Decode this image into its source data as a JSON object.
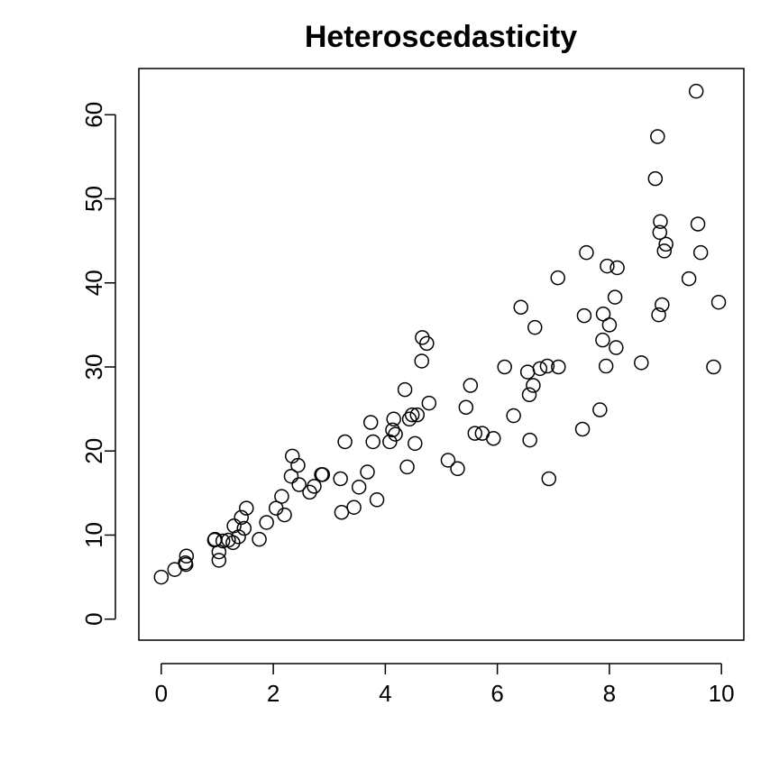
{
  "chart_data": {
    "type": "scatter",
    "title": "Heteroscedasticity",
    "xlabel": "",
    "ylabel": "",
    "xlim": [
      -0.4,
      10.4
    ],
    "ylim": [
      -2.5,
      65.5
    ],
    "xticks": [
      0,
      2,
      4,
      6,
      8,
      10
    ],
    "yticks": [
      0,
      10,
      20,
      30,
      40,
      50,
      60
    ],
    "grid": false,
    "points": [
      [
        0.0,
        5.0
      ],
      [
        0.24,
        5.9
      ],
      [
        0.43,
        6.7
      ],
      [
        0.44,
        6.5
      ],
      [
        0.45,
        7.5
      ],
      [
        0.95,
        9.4
      ],
      [
        0.96,
        9.5
      ],
      [
        1.03,
        8.0
      ],
      [
        1.03,
        7.0
      ],
      [
        1.1,
        9.3
      ],
      [
        1.2,
        9.4
      ],
      [
        1.28,
        9.1
      ],
      [
        1.3,
        11.1
      ],
      [
        1.38,
        9.8
      ],
      [
        1.43,
        12.1
      ],
      [
        1.48,
        10.8
      ],
      [
        1.52,
        13.2
      ],
      [
        1.75,
        9.5
      ],
      [
        1.88,
        11.5
      ],
      [
        2.05,
        13.2
      ],
      [
        2.15,
        14.6
      ],
      [
        2.2,
        12.4
      ],
      [
        2.32,
        17.0
      ],
      [
        2.34,
        19.4
      ],
      [
        2.44,
        18.3
      ],
      [
        2.46,
        16.0
      ],
      [
        2.65,
        15.1
      ],
      [
        2.73,
        15.8
      ],
      [
        2.86,
        17.2
      ],
      [
        2.88,
        17.2
      ],
      [
        3.2,
        16.7
      ],
      [
        3.22,
        12.7
      ],
      [
        3.28,
        21.1
      ],
      [
        3.44,
        13.3
      ],
      [
        3.53,
        15.7
      ],
      [
        3.68,
        17.5
      ],
      [
        3.74,
        23.4
      ],
      [
        3.78,
        21.1
      ],
      [
        3.85,
        14.2
      ],
      [
        4.08,
        21.1
      ],
      [
        4.13,
        22.5
      ],
      [
        4.15,
        23.8
      ],
      [
        4.18,
        22.0
      ],
      [
        4.35,
        27.3
      ],
      [
        4.39,
        18.1
      ],
      [
        4.43,
        23.8
      ],
      [
        4.48,
        24.3
      ],
      [
        4.53,
        20.9
      ],
      [
        4.57,
        24.3
      ],
      [
        4.65,
        30.7
      ],
      [
        4.66,
        33.5
      ],
      [
        4.74,
        32.8
      ],
      [
        4.78,
        25.7
      ],
      [
        5.12,
        18.9
      ],
      [
        5.29,
        17.9
      ],
      [
        5.44,
        25.2
      ],
      [
        5.52,
        27.8
      ],
      [
        5.6,
        22.1
      ],
      [
        5.73,
        22.1
      ],
      [
        5.93,
        21.5
      ],
      [
        6.13,
        30.0
      ],
      [
        6.29,
        24.2
      ],
      [
        6.42,
        37.1
      ],
      [
        6.54,
        29.4
      ],
      [
        6.57,
        26.7
      ],
      [
        6.58,
        21.3
      ],
      [
        6.64,
        27.8
      ],
      [
        6.67,
        34.7
      ],
      [
        6.76,
        29.8
      ],
      [
        6.89,
        30.1
      ],
      [
        6.92,
        16.7
      ],
      [
        7.08,
        40.6
      ],
      [
        7.09,
        30.0
      ],
      [
        7.52,
        22.6
      ],
      [
        7.55,
        36.1
      ],
      [
        7.59,
        43.6
      ],
      [
        7.83,
        24.9
      ],
      [
        7.88,
        33.2
      ],
      [
        7.89,
        36.3
      ],
      [
        7.94,
        30.1
      ],
      [
        7.96,
        42.0
      ],
      [
        8.0,
        35.0
      ],
      [
        8.1,
        38.3
      ],
      [
        8.12,
        32.3
      ],
      [
        8.14,
        41.8
      ],
      [
        8.57,
        30.5
      ],
      [
        8.82,
        52.4
      ],
      [
        8.86,
        57.4
      ],
      [
        8.88,
        36.2
      ],
      [
        8.9,
        46.0
      ],
      [
        8.91,
        47.3
      ],
      [
        8.94,
        37.4
      ],
      [
        8.98,
        43.8
      ],
      [
        9.01,
        44.6
      ],
      [
        9.42,
        40.5
      ],
      [
        9.55,
        62.8
      ],
      [
        9.58,
        47.0
      ],
      [
        9.63,
        43.6
      ],
      [
        9.86,
        30.0
      ],
      [
        9.95,
        37.7
      ]
    ]
  }
}
